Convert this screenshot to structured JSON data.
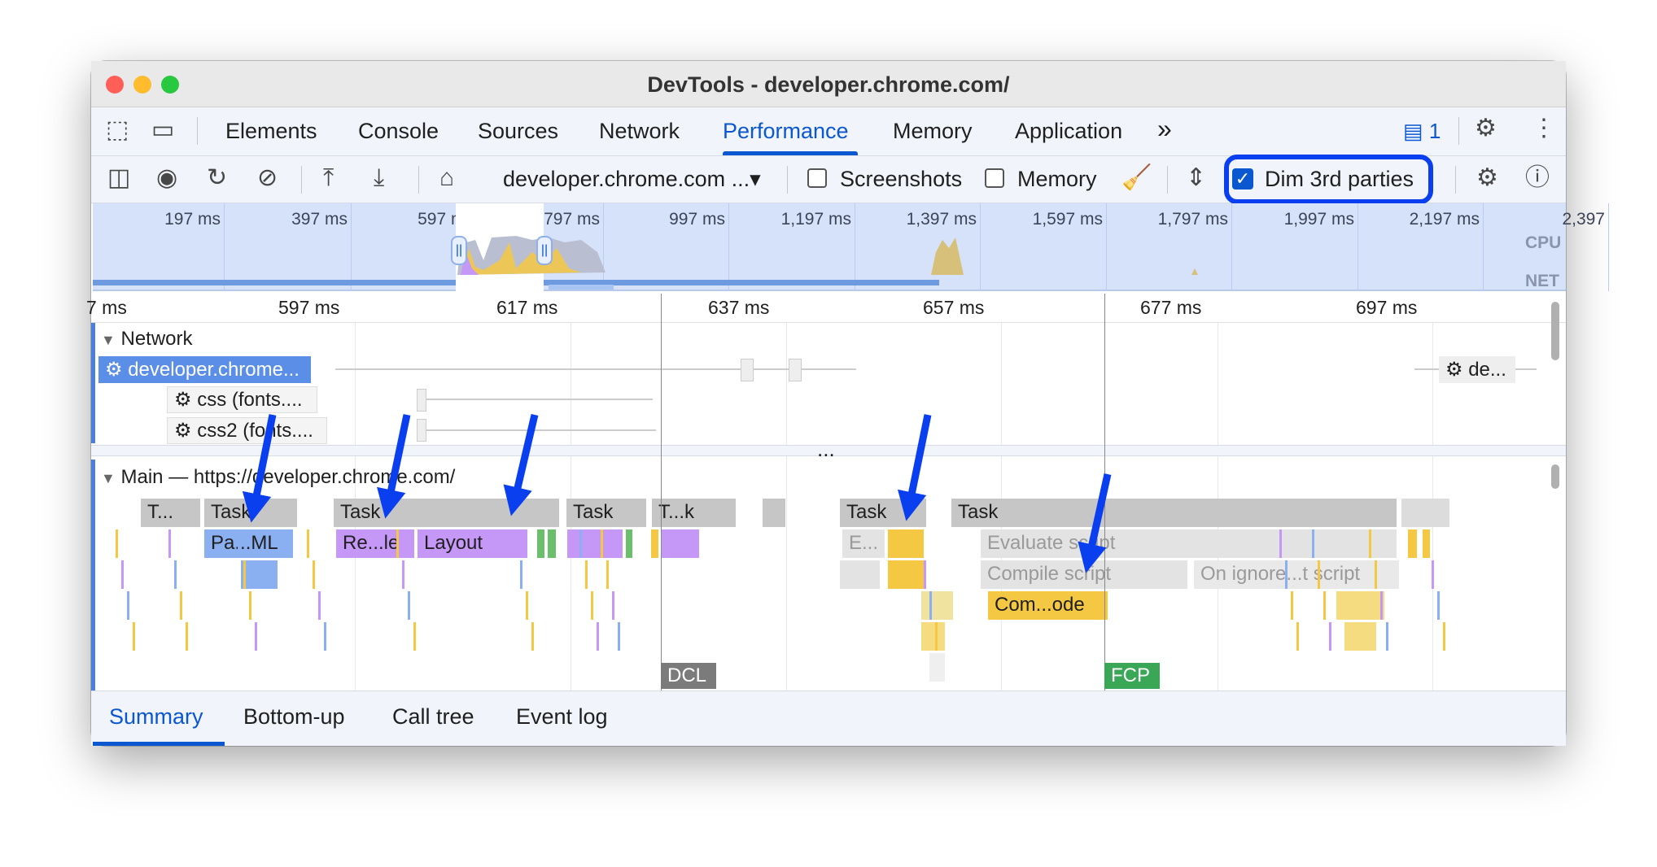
{
  "window": {
    "title": "DevTools - developer.chrome.com/"
  },
  "tabs": [
    {
      "label": "Elements"
    },
    {
      "label": "Console"
    },
    {
      "label": "Sources"
    },
    {
      "label": "Network"
    },
    {
      "label": "Performance",
      "active": true
    },
    {
      "label": "Memory"
    },
    {
      "label": "Application"
    }
  ],
  "tabbar": {
    "more_icon": "»",
    "issues_count": "1"
  },
  "toolbar": {
    "url": "developer.chrome.com ...▾",
    "screenshots_label": "Screenshots",
    "screenshots_checked": false,
    "memory_label": "Memory",
    "memory_checked": false,
    "dim_label": "Dim 3rd parties",
    "dim_checked": true
  },
  "overview": {
    "ticks": [
      "197 ms",
      "397 ms",
      "597 ms",
      "797 ms",
      "997 ms",
      "1,197 ms",
      "1,397 ms",
      "1,597 ms",
      "1,797 ms",
      "1,997 ms",
      "2,197 ms",
      "2,397"
    ],
    "cpu_label": "CPU",
    "net_label": "NET"
  },
  "ruler": {
    "ticks": [
      "7 ms",
      "597 ms",
      "617 ms",
      "637 ms",
      "657 ms",
      "677 ms",
      "697 ms"
    ]
  },
  "network": {
    "title": "Network",
    "requests": [
      {
        "label": "developer.chrome..."
      },
      {
        "label": "css (fonts...."
      },
      {
        "label": "css2 (fonts...."
      },
      {
        "label": "de..."
      }
    ],
    "more": "..."
  },
  "main": {
    "title": "Main — https://developer.chrome.com/",
    "row1": [
      "T...",
      "Task",
      "Task",
      "Task",
      "T...k",
      "Task",
      "Task"
    ],
    "row2": [
      "Pa...ML",
      "Re...le",
      "Layout",
      "E...",
      "Evaluate script"
    ],
    "row3": [
      "Compile script",
      "On ignore...t script"
    ],
    "row4": [
      "Com...ode"
    ],
    "markers": [
      "DCL",
      "FCP"
    ]
  },
  "bottom_tabs": [
    {
      "label": "Summary",
      "active": true
    },
    {
      "label": "Bottom-up"
    },
    {
      "label": "Call tree"
    },
    {
      "label": "Event log"
    }
  ],
  "colors": {
    "accent": "#0b57d0",
    "annotation": "#0a3ff0",
    "scripting": "#f4c842",
    "rendering": "#c597f7",
    "loading": "#8ab0f2",
    "painting": "#6bbf6b",
    "task": "#c6c6c6"
  }
}
